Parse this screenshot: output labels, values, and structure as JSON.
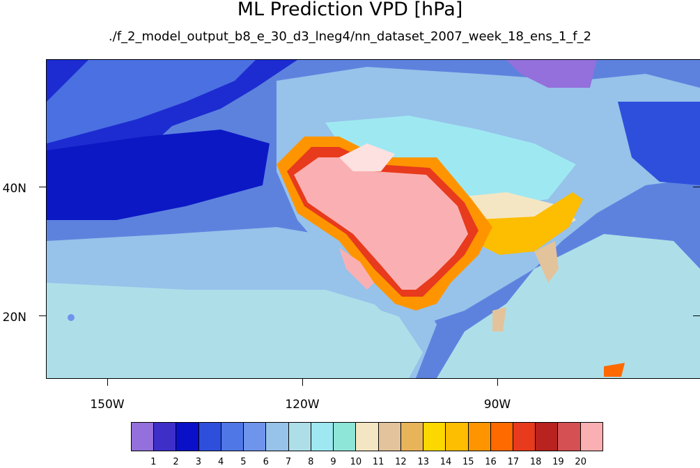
{
  "title": "ML Prediction VPD [hPa]",
  "subtitle": "./f_2_model_output_b8_e_30_d3_lneg4/nn_dataset_2007_week_18_ens_1_f_2",
  "lat_labels": [
    "40N",
    "20N"
  ],
  "lon_labels": [
    "150W",
    "120W",
    "90W"
  ],
  "colorbar": {
    "labels": [
      "1",
      "2",
      "3",
      "4",
      "5",
      "6",
      "7",
      "8",
      "9",
      "10",
      "11",
      "12",
      "13",
      "14",
      "15",
      "16",
      "17",
      "18",
      "19",
      "20"
    ],
    "colors": [
      "#9370db",
      "#3f2fc9",
      "#0a10c7",
      "#2e4fdc",
      "#4f77e6",
      "#6f94ec",
      "#97c2ea",
      "#aedfe9",
      "#9ee8f2",
      "#8ee6d8",
      "#f4e6c3",
      "#e2c39b",
      "#e8b45a",
      "#fcd800",
      "#fdbd00",
      "#fe9500",
      "#fe6a00",
      "#e83a1c",
      "#b8221f",
      "#d45052",
      "#fab0b2"
    ],
    "extra_levels_note": ""
  },
  "map": {
    "ocean_color": "#5d82de",
    "lon_range": [
      -162,
      -62
    ],
    "lat_range": [
      10,
      59
    ]
  }
}
